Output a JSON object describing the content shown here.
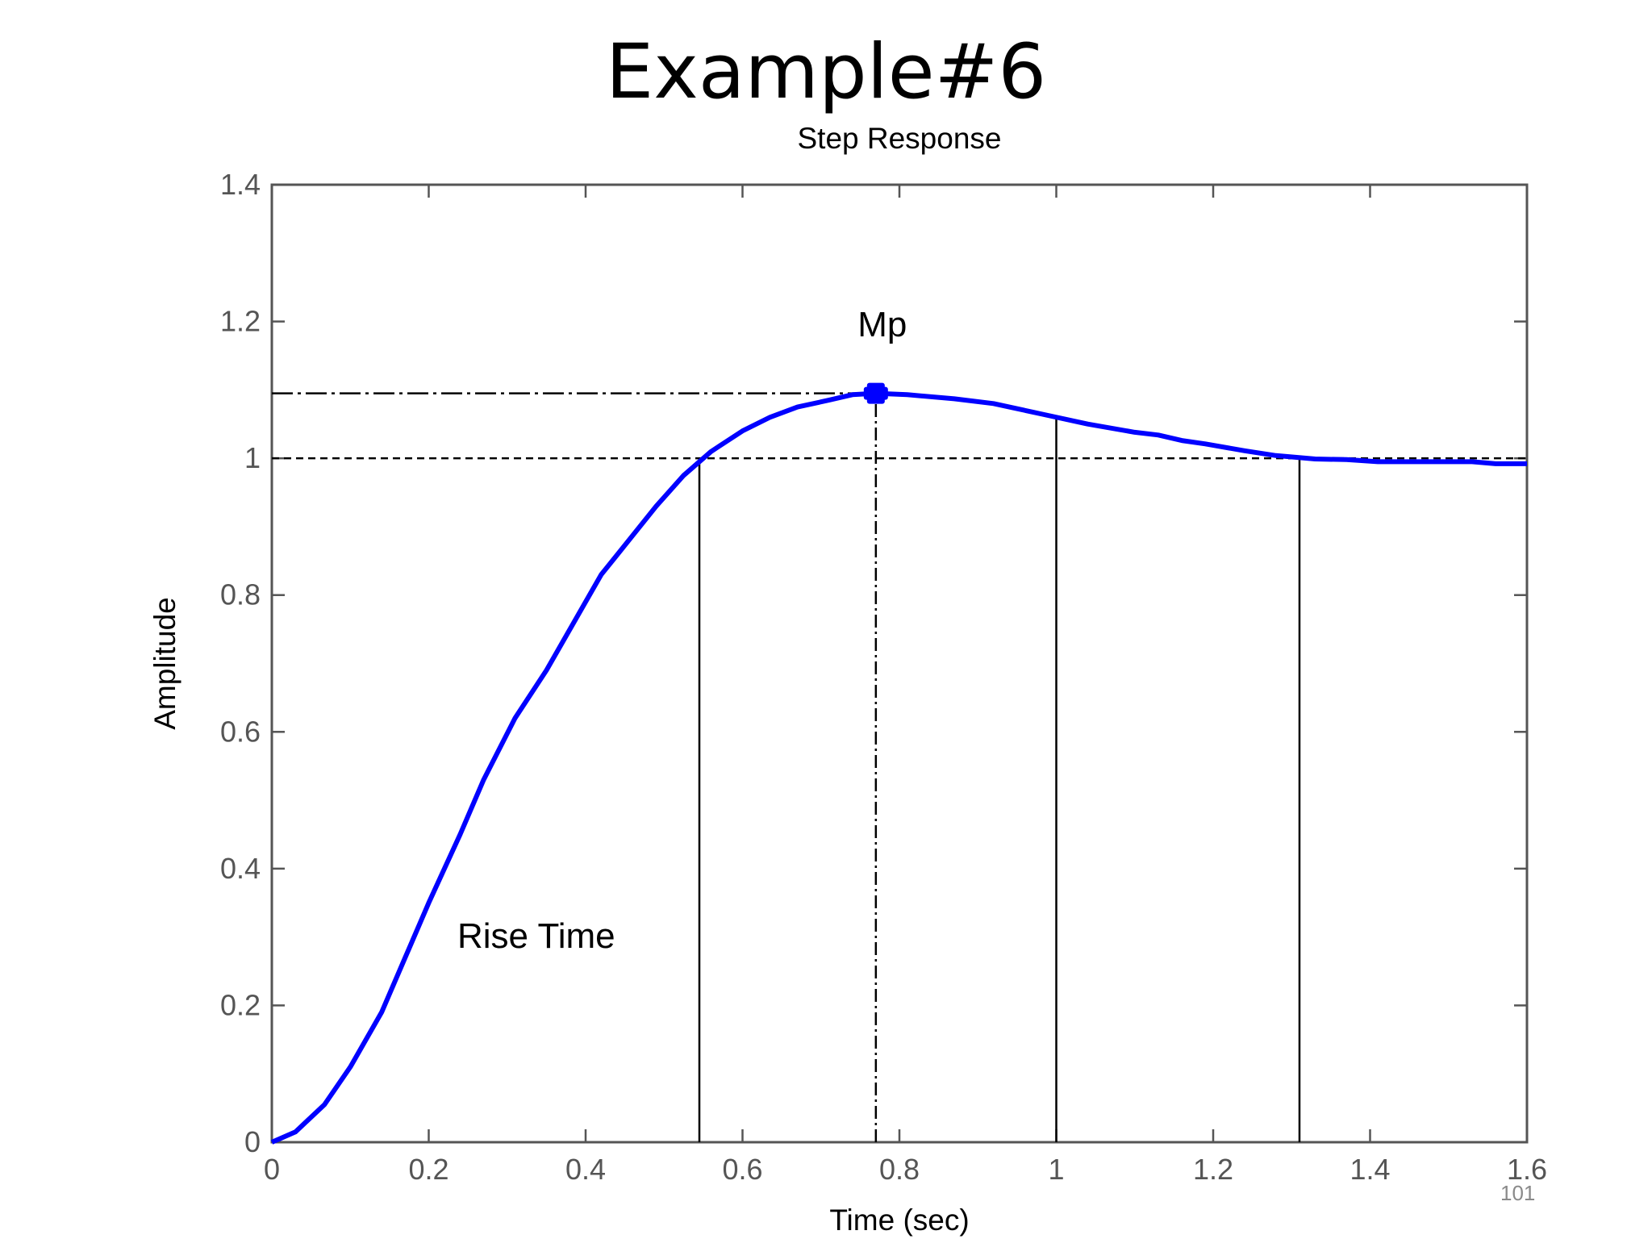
{
  "slide": {
    "title": "Example#6",
    "page_number": "101"
  },
  "chart_data": {
    "type": "line",
    "title": "Step Response",
    "xlabel": "Time (sec)",
    "ylabel": "Amplitude",
    "xlim": [
      0,
      1.6
    ],
    "ylim": [
      0,
      1.4
    ],
    "x_ticks": [
      0,
      0.2,
      0.4,
      0.6,
      0.8,
      1,
      1.2,
      1.4,
      1.6
    ],
    "y_ticks": [
      0,
      0.2,
      0.4,
      0.6,
      0.8,
      1,
      1.2,
      1.4
    ],
    "x_tick_labels": [
      "0",
      "0.2",
      "0.4",
      "0.6",
      "0.8",
      "1",
      "1.2",
      "1.4",
      "1.6"
    ],
    "y_tick_labels": [
      "0",
      "0.2",
      "0.4",
      "0.6",
      "0.8",
      "1",
      "1.2",
      "1.4"
    ],
    "grid": false,
    "series": [
      {
        "color": "#0000ff",
        "x": [
          0,
          0.03,
          0.067,
          0.1,
          0.14,
          0.17,
          0.2,
          0.24,
          0.27,
          0.31,
          0.35,
          0.385,
          0.42,
          0.455,
          0.49,
          0.525,
          0.56,
          0.6,
          0.635,
          0.67,
          0.71,
          0.74,
          0.77,
          0.81,
          0.87,
          0.92,
          0.98,
          1.04,
          1.1,
          1.13,
          1.16,
          1.19,
          1.24,
          1.28,
          1.33,
          1.37,
          1.41,
          1.45,
          1.49,
          1.53,
          1.56,
          1.6
        ],
        "y": [
          0,
          0.015,
          0.055,
          0.11,
          0.19,
          0.27,
          0.35,
          0.45,
          0.53,
          0.62,
          0.69,
          0.76,
          0.83,
          0.88,
          0.93,
          0.975,
          1.01,
          1.04,
          1.06,
          1.075,
          1.085,
          1.093,
          1.095,
          1.093,
          1.087,
          1.08,
          1.065,
          1.05,
          1.038,
          1.034,
          1.026,
          1.021,
          1.011,
          1.004,
          0.999,
          0.998,
          0.995,
          0.995,
          0.995,
          0.995,
          0.992,
          0.992
        ]
      }
    ],
    "peak_marker": {
      "x": 0.77,
      "y": 1.095,
      "label": "Mp"
    },
    "reference_lines": {
      "overshoot_level": 1.095,
      "final_value": 1.0,
      "vertical_x": [
        0.545,
        0.77,
        1.0,
        1.31
      ]
    },
    "annotations": {
      "rise_time_label": "Rise Time",
      "peak_label": "Mp"
    }
  }
}
